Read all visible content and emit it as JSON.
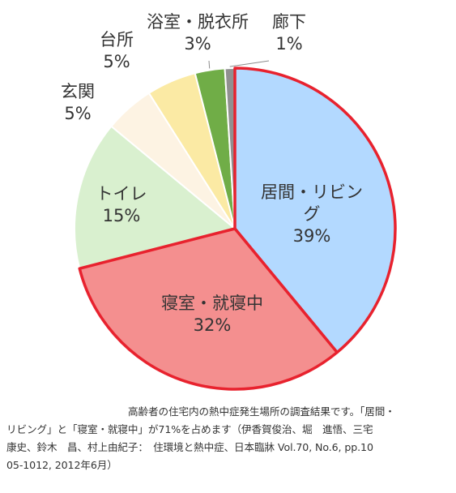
{
  "chart_data": {
    "type": "pie",
    "title": "",
    "start_angle_deg": 0,
    "direction": "clockwise",
    "slices": [
      {
        "label_lines": [
          "居間・リビン",
          "グ"
        ],
        "percent_text": "39%",
        "value": 39,
        "color": "#b3d9ff",
        "highlight": true
      },
      {
        "label_lines": [
          "寝室・就寝中"
        ],
        "percent_text": "32%",
        "value": 32,
        "color": "#f48f8f",
        "highlight": true
      },
      {
        "label_lines": [
          "トイレ"
        ],
        "percent_text": "15%",
        "value": 15,
        "color": "#d9f0cf",
        "highlight": false
      },
      {
        "label_lines": [
          "玄関"
        ],
        "percent_text": "5%",
        "value": 5,
        "color": "#fdf3e3",
        "highlight": false
      },
      {
        "label_lines": [
          "台所"
        ],
        "percent_text": "5%",
        "value": 5,
        "color": "#fbeaa4",
        "highlight": false
      },
      {
        "label_lines": [
          "浴室・脱衣所"
        ],
        "percent_text": "3%",
        "value": 3,
        "color": "#70ad47",
        "highlight": false
      },
      {
        "label_lines": [
          "廊下"
        ],
        "percent_text": "1%",
        "value": 1,
        "color": "#909090",
        "highlight": false
      }
    ],
    "highlight_color": "#e8222e"
  },
  "caption": {
    "line1": "高齢者の住宅内の熱中症発生場所の調査結果です。「居間・",
    "line2": "リビング」と「寝室・就寝中」が71%を占めます（伊香賀俊治、堀　進悟、三宅",
    "line3": "康史、鈴木　昌、村上由紀子：　住環境と熱中症、日本臨牀 Vol.70, No.6, pp.10",
    "line4": "05-1012, 2012年6月）"
  }
}
